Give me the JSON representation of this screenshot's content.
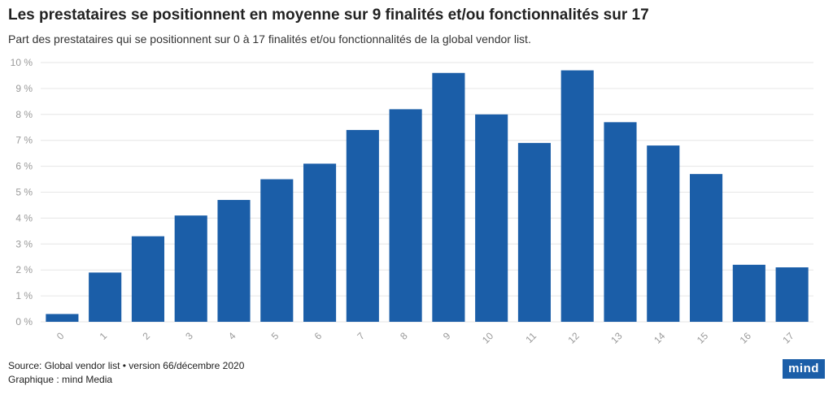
{
  "header": {
    "title": "Les prestataires se positionnent en moyenne sur 9 finalités et/ou fonctionnalités sur 17",
    "subtitle": "Part des prestataires qui se positionnent sur 0 à 17 finalités et/ou fonctionnalités de la global vendor list."
  },
  "footer": {
    "source": "Source: Global vendor list • version 66/décembre 2020",
    "credit": "Graphique : mind Media",
    "logo_text": "mind"
  },
  "colors": {
    "bar": "#1b5ea8",
    "grid": "#e6e6e6",
    "axis_text": "#9a9a9a"
  },
  "chart_data": {
    "type": "bar",
    "title": "Les prestataires se positionnent en moyenne sur 9 finalités et/ou fonctionnalités sur 17",
    "subtitle": "Part des prestataires qui se positionnent sur 0 à 17 finalités et/ou fonctionnalités de la global vendor list.",
    "categories": [
      "0",
      "1",
      "2",
      "3",
      "4",
      "5",
      "6",
      "7",
      "8",
      "9",
      "10",
      "11",
      "12",
      "13",
      "14",
      "15",
      "16",
      "17"
    ],
    "values": [
      0.3,
      1.9,
      3.3,
      4.1,
      4.7,
      5.5,
      6.1,
      7.4,
      8.2,
      9.6,
      8.0,
      6.9,
      9.7,
      7.7,
      6.8,
      5.7,
      2.2,
      2.1
    ],
    "ylim": [
      0,
      10
    ],
    "yticks": [
      0,
      1,
      2,
      3,
      4,
      5,
      6,
      7,
      8,
      9,
      10
    ],
    "ytick_labels": [
      "0 %",
      "1 %",
      "2 %",
      "3 %",
      "4 %",
      "5 %",
      "6 %",
      "7 %",
      "8 %",
      "9 %",
      "10 %"
    ],
    "grid": true,
    "legend": "none",
    "xlabel": "",
    "ylabel": ""
  }
}
